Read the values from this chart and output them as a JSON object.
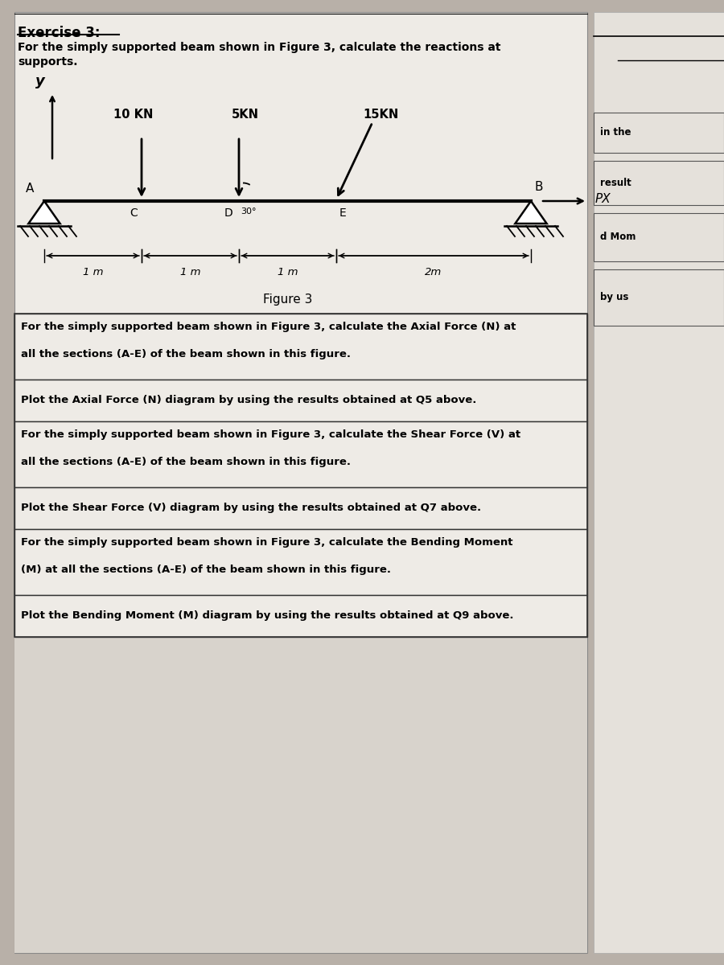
{
  "bg_color": "#b8b0a8",
  "paper_color": "#eeebe6",
  "paper_color2": "#e8e4de",
  "right_paper_color": "#e5e1db",
  "exercise_title": "Exercise 3:",
  "q1_text_line1": "For the simply supported beam shown in Figure 3, calculate the reactions at",
  "q1_text_line2": "supports.",
  "figure_caption": "Figure 3",
  "q5_text_line1": "For the simply supported beam shown in Figure 3, calculate the Axial Force (N) at",
  "q5_text_line2": "all the sections (A-E) of the beam shown in this figure.",
  "q6_text": "Plot the Axial Force (N) diagram by using the results obtained at Q5 above.",
  "q7_text_line1": "For the simply supported beam shown in Figure 3, calculate the Shear Force (V) at",
  "q7_text_line2": "all the sections (A-E) of the beam shown in this figure.",
  "q8_text": "Plot the Shear Force (V) diagram by using the results obtained at Q7 above.",
  "q9_text_line1": "For the simply supported beam shown in Figure 3, calculate the Bending Moment",
  "q9_text_line2": "(M) at all the sections (A-E) of the beam shown in this figure.",
  "q10_text": "Plot the Bending Moment (M) diagram by using the results obtained at Q9 above.",
  "right_texts": [
    "in the",
    "result",
    "d Mom",
    "by us"
  ],
  "force1_label": "10 KN",
  "force2_label": "5KN",
  "force3_label": "15KN",
  "angle_label": "30°",
  "dim1": "1 m",
  "dim2": "1 m",
  "dim3": "1 m",
  "dim4": "2m",
  "node_A": "A",
  "node_B": "B",
  "node_C": "C",
  "node_D": "D",
  "node_E": "E",
  "px_label": "PX",
  "y_label": "y"
}
